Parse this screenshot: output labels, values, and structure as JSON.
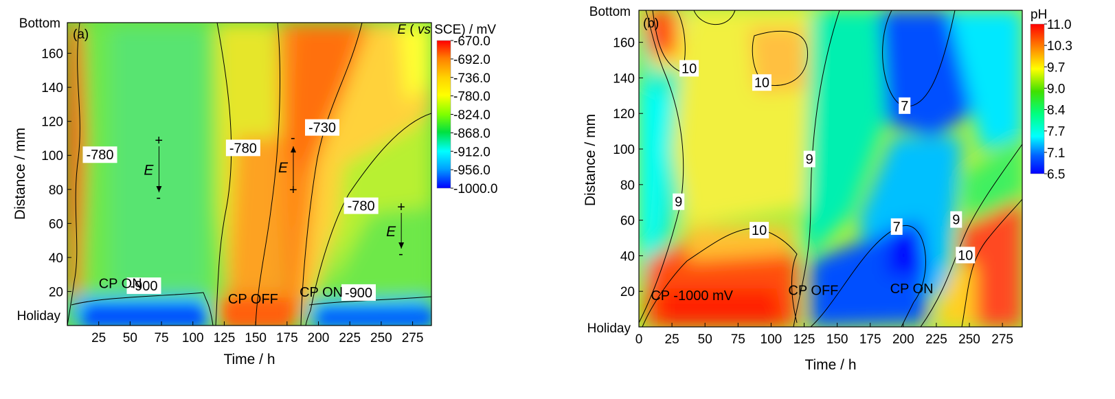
{
  "chart_data": [
    {
      "type": "heatmap",
      "panel_label": "(a)",
      "xlabel": "Time / h",
      "ylabel": "Distance / mm",
      "xlim": [
        0,
        290
      ],
      "ylim": [
        0,
        178
      ],
      "x_ticks": [
        25,
        50,
        75,
        100,
        125,
        150,
        175,
        200,
        225,
        250,
        275
      ],
      "y_ticks": [
        20,
        40,
        60,
        80,
        100,
        120,
        140,
        160
      ],
      "y_end_labels": {
        "top": "Bottom",
        "bottom": "Holiday"
      },
      "colorbar": {
        "title_italic": "E",
        "title_rest": " ( vs SCE) / mV",
        "title_vs": "vs",
        "levels": [
          "-670.0",
          "-692.0",
          "-736.0",
          "-780.0",
          "-824.0",
          "-868.0",
          "-912.0",
          "-956.0",
          "-1000.0"
        ],
        "colors": [
          "#ff0000",
          "#ff7f00",
          "#ffd200",
          "#ffff00",
          "#80ff00",
          "#00e040",
          "#00ffff",
          "#00a0ff",
          "#0000ff"
        ]
      },
      "contour_labels": [
        {
          "text": "-780",
          "x": 26,
          "y": 100
        },
        {
          "text": "-780",
          "x": 140,
          "y": 104
        },
        {
          "text": "-730",
          "x": 203,
          "y": 116
        },
        {
          "text": "-780",
          "x": 234,
          "y": 70
        },
        {
          "text": "-900",
          "x": 61,
          "y": 23
        },
        {
          "text": "-900",
          "x": 232,
          "y": 19
        }
      ],
      "annotations": [
        {
          "text": "CP ON",
          "x": 25,
          "y": 22
        },
        {
          "text": "CP OFF",
          "x": 128,
          "y": 13
        },
        {
          "text": "CP ON",
          "x": 185,
          "y": 17
        }
      ],
      "arrows": [
        {
          "label": "E",
          "x": 73,
          "from_sign": "+",
          "to_sign": "-",
          "direction": "down"
        },
        {
          "label": "E",
          "x": 180,
          "from_sign": "+",
          "to_sign": "-",
          "direction": "up"
        },
        {
          "label": "E",
          "x": 266,
          "from_sign": "+",
          "to_sign": "-",
          "direction": "down"
        }
      ]
    },
    {
      "type": "heatmap",
      "panel_label": "(b)",
      "xlabel": "Time / h",
      "ylabel": "Distance / mm",
      "xlim": [
        0,
        290
      ],
      "ylim": [
        0,
        178
      ],
      "x_ticks": [
        0,
        25,
        50,
        75,
        100,
        125,
        150,
        175,
        200,
        225,
        250,
        275
      ],
      "y_ticks": [
        20,
        40,
        60,
        80,
        100,
        120,
        140,
        160
      ],
      "y_end_labels": {
        "top": "Bottom",
        "bottom": "Holiday"
      },
      "colorbar": {
        "title": "pH",
        "levels": [
          "11.0",
          "10.3",
          "9.7",
          "9.0",
          "8.4",
          "7.7",
          "7.1",
          "6.5"
        ],
        "colors": [
          "#ff0000",
          "#ff8000",
          "#ffff00",
          "#40e000",
          "#00ff80",
          "#00ffff",
          "#0060ff",
          "#0000ff"
        ]
      },
      "contour_labels": [
        {
          "text": "10",
          "x": 38,
          "y": 145
        },
        {
          "text": "10",
          "x": 93,
          "y": 137
        },
        {
          "text": "7",
          "x": 201,
          "y": 124
        },
        {
          "text": "9",
          "x": 129,
          "y": 94
        },
        {
          "text": "9",
          "x": 30,
          "y": 70
        },
        {
          "text": "10",
          "x": 91,
          "y": 54
        },
        {
          "text": "7",
          "x": 195,
          "y": 56
        },
        {
          "text": "9",
          "x": 240,
          "y": 60
        },
        {
          "text": "10",
          "x": 247,
          "y": 40
        }
      ],
      "annotations": [
        {
          "text": "CP -1000 mV",
          "x": 9,
          "y": 15
        },
        {
          "text": "CP OFF",
          "x": 113,
          "y": 18
        },
        {
          "text": "CP ON",
          "x": 190,
          "y": 19
        }
      ]
    }
  ]
}
